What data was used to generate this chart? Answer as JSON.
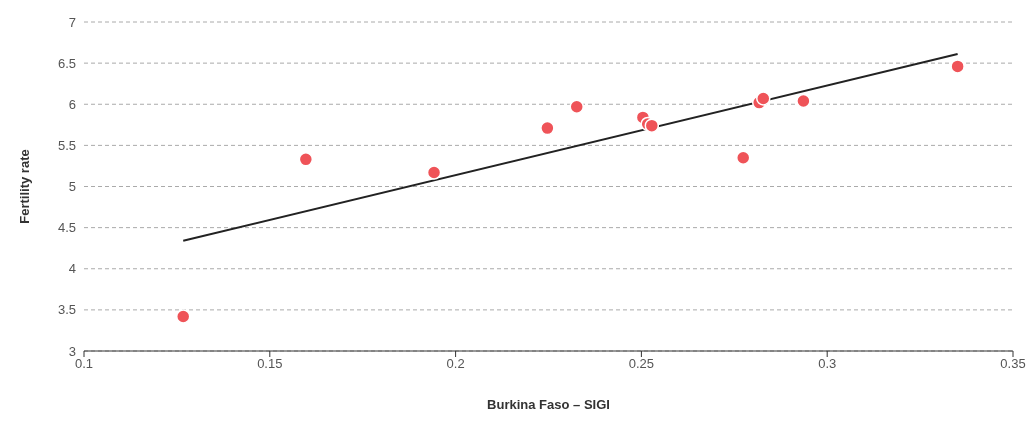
{
  "chart_data": {
    "type": "scatter",
    "xlabel": "Burkina Faso – SIGI",
    "ylabel": "Fertility rate",
    "xlim": [
      0.1,
      0.35
    ],
    "xticks": [
      0.1,
      0.15,
      0.2,
      0.25,
      0.3,
      0.35
    ],
    "ylim": [
      3,
      7
    ],
    "yticks": [
      3,
      3.5,
      4,
      4.5,
      5,
      5.5,
      6,
      6.5,
      7
    ],
    "grid": "y",
    "marker": "circle",
    "series": [
      {
        "color": "#ef5358",
        "x": [
          0.1267,
          0.1597,
          0.1942,
          0.2247,
          0.2326,
          0.2504,
          0.2517,
          0.2528,
          0.2774,
          0.2817,
          0.2828,
          0.2936,
          0.3351
        ],
        "values": [
          3.42,
          5.33,
          5.17,
          5.71,
          5.97,
          5.84,
          5.76,
          5.74,
          5.35,
          6.02,
          6.07,
          6.04,
          6.46
        ]
      },
      {
        "type": "line",
        "color": "#222222",
        "marker": "none",
        "x": [
          0.1267,
          0.3351
        ],
        "values": [
          4.34,
          6.61
        ]
      }
    ]
  }
}
